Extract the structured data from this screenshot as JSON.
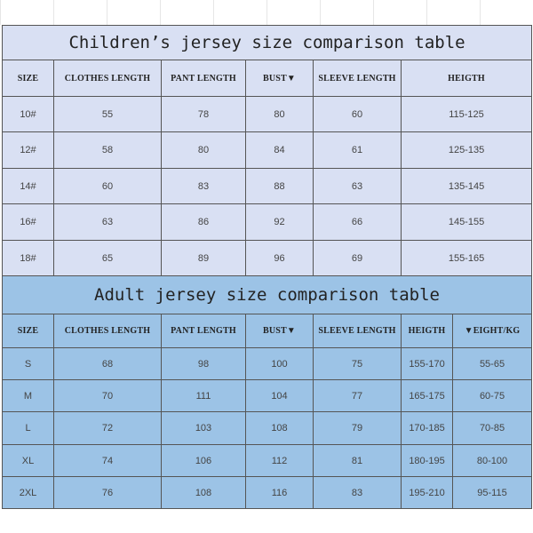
{
  "children": {
    "title": "Children’s jersey size comparison table",
    "headers": [
      "SIZE",
      "CLOTHES LENGTH",
      "PANT LENGTH",
      "BUST▼",
      "SLEEVE LENGTH",
      "HEIGTH"
    ],
    "rows": [
      [
        "10#",
        "55",
        "78",
        "80",
        "60",
        "115-125"
      ],
      [
        "12#",
        "58",
        "80",
        "84",
        "61",
        "125-135"
      ],
      [
        "14#",
        "60",
        "83",
        "88",
        "63",
        "135-145"
      ],
      [
        "16#",
        "63",
        "86",
        "92",
        "66",
        "145-155"
      ],
      [
        "18#",
        "65",
        "89",
        "96",
        "69",
        "155-165"
      ]
    ],
    "background": "#d9e0f3"
  },
  "adult": {
    "title": "Adult jersey size comparison table",
    "headers": [
      "SIZE",
      "CLOTHES LENGTH",
      "PANT LENGTH",
      "BUST▼",
      "SLEEVE LENGTH",
      "HEIGTH",
      "▼EIGHT/KG"
    ],
    "rows": [
      [
        "S",
        "68",
        "98",
        "100",
        "75",
        "155-170",
        "55-65"
      ],
      [
        "M",
        "70",
        "111",
        "104",
        "77",
        "165-175",
        "60-75"
      ],
      [
        "L",
        "72",
        "103",
        "108",
        "79",
        "170-185",
        "70-85"
      ],
      [
        "XL",
        "74",
        "106",
        "112",
        "81",
        "180-195",
        "80-100"
      ],
      [
        "2XL",
        "76",
        "108",
        "116",
        "83",
        "195-210",
        "95-115"
      ]
    ],
    "background": "#9cc3e6"
  }
}
